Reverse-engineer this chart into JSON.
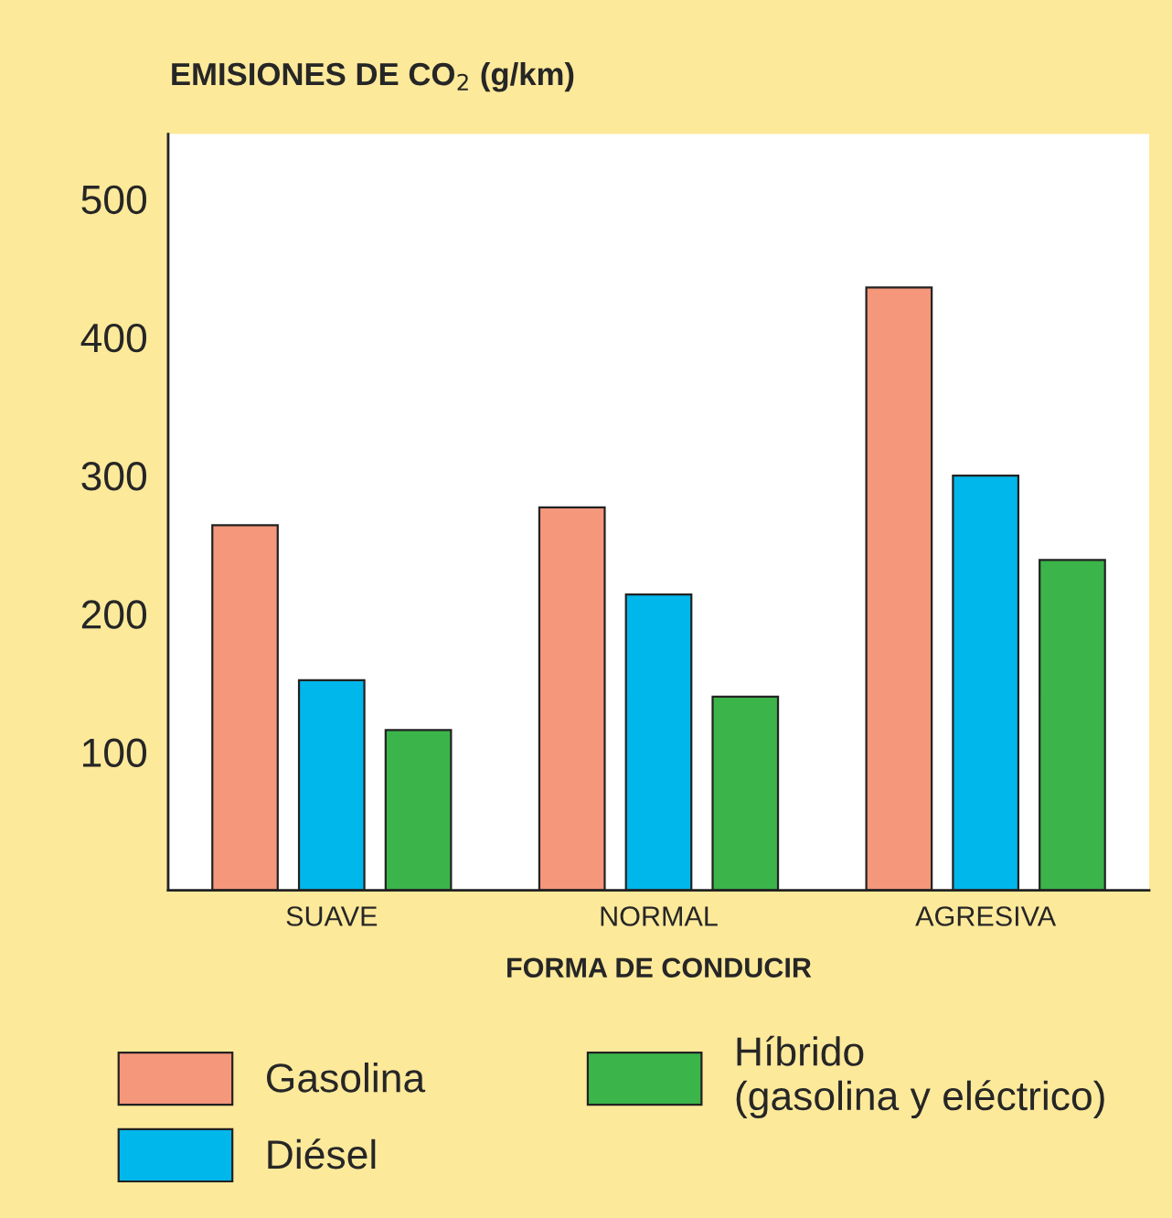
{
  "chart_data": {
    "type": "bar",
    "title": "EMISIONES DE CO$_{2}$ (g/km)",
    "xlabel": "FORMA DE CONDUCIR",
    "categories": [
      "SUAVE",
      "NORMAL",
      "AGRESIVA"
    ],
    "series": [
      {
        "name": "Gasolina",
        "color": "#f4977b",
        "values": [
          264,
          277,
          436
        ]
      },
      {
        "name": "Diésel",
        "color": "#00b7eb",
        "values": [
          152,
          214,
          300
        ]
      },
      {
        "name": "Híbrido\n(gasolina y eléctrico)",
        "color": "#3bb54a",
        "values": [
          116,
          140,
          239
        ]
      }
    ],
    "ylim": [
      0,
      547
    ],
    "yticks": [
      100,
      200,
      300,
      400,
      500
    ],
    "grid": false,
    "legend": "bottom"
  }
}
